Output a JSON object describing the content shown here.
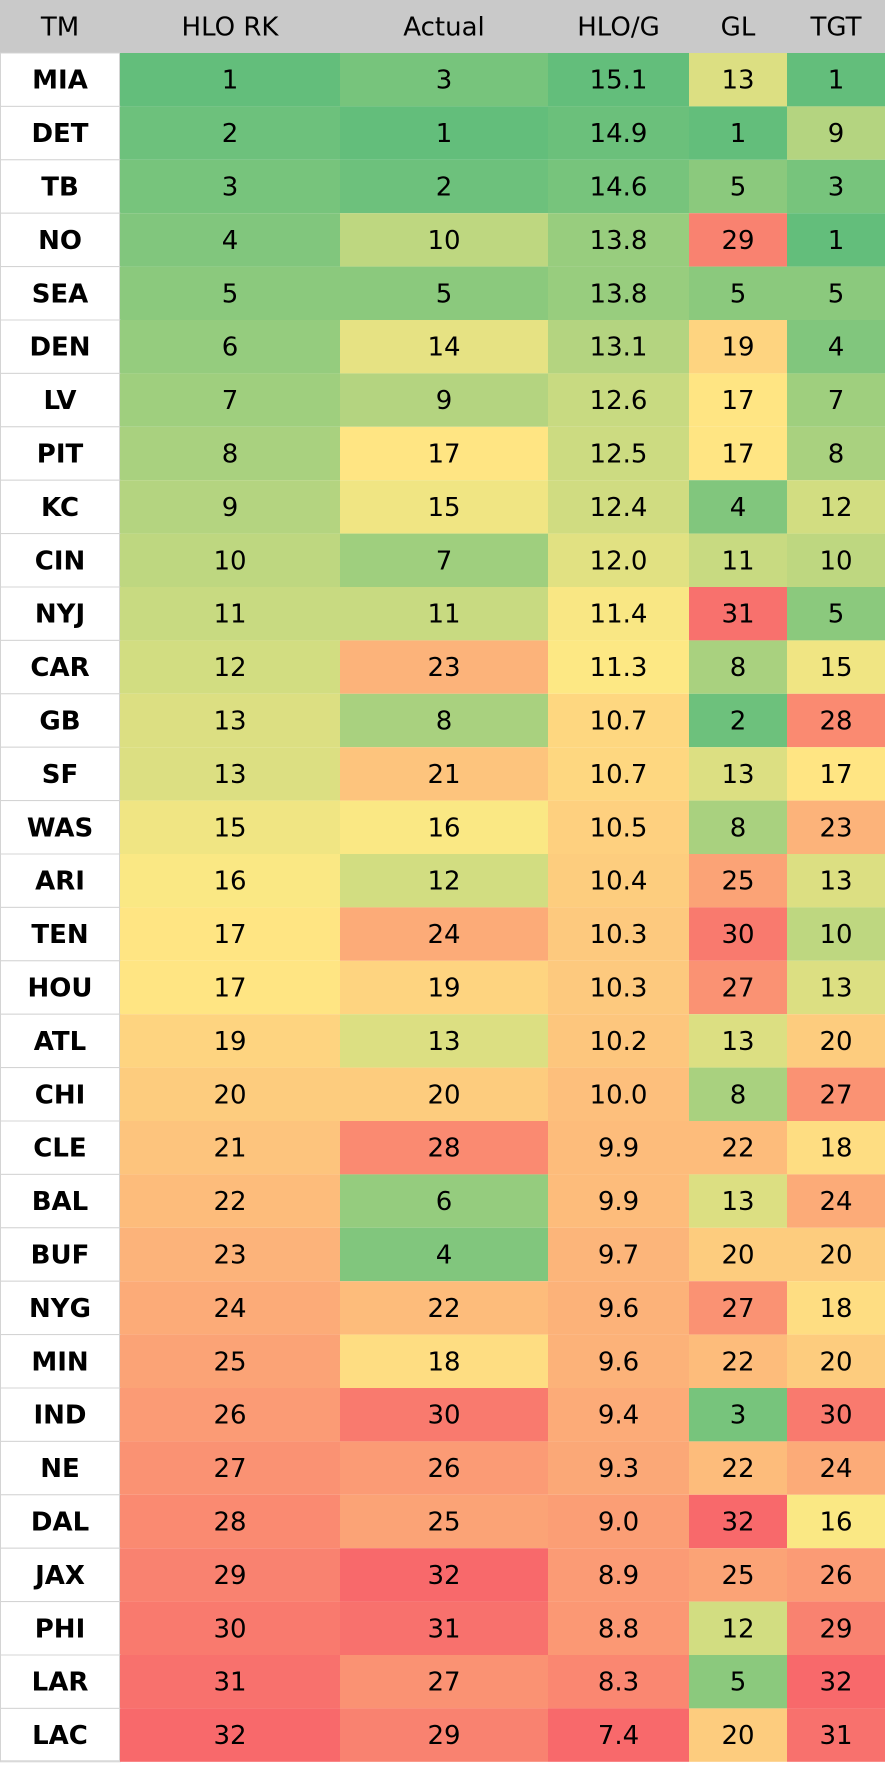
{
  "chart_data": {
    "type": "heatmap",
    "columns": [
      "TM",
      "HLO RK",
      "Actual",
      "HLO/G",
      "GL",
      "TGT"
    ],
    "rows": [
      {
        "team": "MIA",
        "values": [
          1,
          3,
          "15.1",
          13,
          1
        ]
      },
      {
        "team": "DET",
        "values": [
          2,
          1,
          "14.9",
          1,
          9
        ]
      },
      {
        "team": "TB",
        "values": [
          3,
          2,
          "14.6",
          5,
          3
        ]
      },
      {
        "team": "NO",
        "values": [
          4,
          10,
          "13.8",
          29,
          1
        ]
      },
      {
        "team": "SEA",
        "values": [
          5,
          5,
          "13.8",
          5,
          5
        ]
      },
      {
        "team": "DEN",
        "values": [
          6,
          14,
          "13.1",
          19,
          4
        ]
      },
      {
        "team": "LV",
        "values": [
          7,
          9,
          "12.6",
          17,
          7
        ]
      },
      {
        "team": "PIT",
        "values": [
          8,
          17,
          "12.5",
          17,
          8
        ]
      },
      {
        "team": "KC",
        "values": [
          9,
          15,
          "12.4",
          4,
          12
        ]
      },
      {
        "team": "CIN",
        "values": [
          10,
          7,
          "12.0",
          11,
          10
        ]
      },
      {
        "team": "NYJ",
        "values": [
          11,
          11,
          "11.4",
          31,
          5
        ]
      },
      {
        "team": "CAR",
        "values": [
          12,
          23,
          "11.3",
          8,
          15
        ]
      },
      {
        "team": "GB",
        "values": [
          13,
          8,
          "10.7",
          2,
          28
        ]
      },
      {
        "team": "SF",
        "values": [
          13,
          21,
          "10.7",
          13,
          17
        ]
      },
      {
        "team": "WAS",
        "values": [
          15,
          16,
          "10.5",
          8,
          23
        ]
      },
      {
        "team": "ARI",
        "values": [
          16,
          12,
          "10.4",
          25,
          13
        ]
      },
      {
        "team": "TEN",
        "values": [
          17,
          24,
          "10.3",
          30,
          10
        ]
      },
      {
        "team": "HOU",
        "values": [
          17,
          19,
          "10.3",
          27,
          13
        ]
      },
      {
        "team": "ATL",
        "values": [
          19,
          13,
          "10.2",
          13,
          20
        ]
      },
      {
        "team": "CHI",
        "values": [
          20,
          20,
          "10.0",
          8,
          27
        ]
      },
      {
        "team": "CLE",
        "values": [
          21,
          28,
          "9.9",
          22,
          18
        ]
      },
      {
        "team": "BAL",
        "values": [
          22,
          6,
          "9.9",
          13,
          24
        ]
      },
      {
        "team": "BUF",
        "values": [
          23,
          4,
          "9.7",
          20,
          20
        ]
      },
      {
        "team": "NYG",
        "values": [
          24,
          22,
          "9.6",
          27,
          18
        ]
      },
      {
        "team": "MIN",
        "values": [
          25,
          18,
          "9.6",
          22,
          20
        ]
      },
      {
        "team": "IND",
        "values": [
          26,
          30,
          "9.4",
          3,
          30
        ]
      },
      {
        "team": "NE",
        "values": [
          27,
          26,
          "9.3",
          22,
          24
        ]
      },
      {
        "team": "DAL",
        "values": [
          28,
          25,
          "9.0",
          32,
          16
        ]
      },
      {
        "team": "JAX",
        "values": [
          29,
          32,
          "8.9",
          25,
          26
        ]
      },
      {
        "team": "PHI",
        "values": [
          30,
          31,
          "8.8",
          12,
          29
        ]
      },
      {
        "team": "LAR",
        "values": [
          31,
          27,
          "8.3",
          5,
          32
        ]
      },
      {
        "team": "LAC",
        "values": [
          32,
          29,
          "7.4",
          20,
          31
        ]
      }
    ],
    "color_scale": {
      "low": "#63be7b",
      "mid": "#ffe984",
      "high": "#f8696b",
      "direction": "green = better, red = worse"
    },
    "header_fill": "#c9c9c9",
    "team_column_fill": "#ffffff",
    "grid_color": "#d4d4d4"
  }
}
